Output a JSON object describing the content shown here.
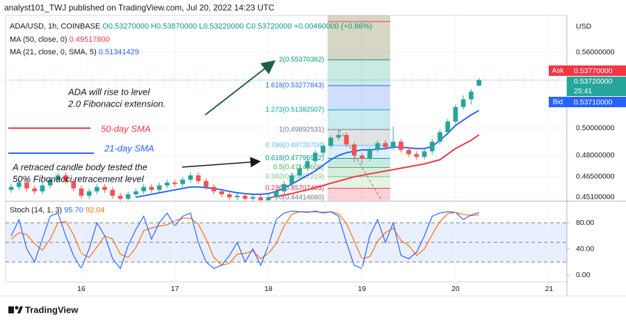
{
  "header": {
    "publisher": "analyst101_TWJ published on TradingView.com, Jul 20, 2022 14:23 UTC",
    "logo": "TradingView"
  },
  "chart_data": [
    {
      "type": "candlestick",
      "symbol": "ADA/USD, 1h, COINBASE",
      "ohlc": [
        "O0.53270000",
        "H0.53870000",
        "L0.53220000",
        "C0.53720000"
      ],
      "change": "+0.00460000 (+0.86%)",
      "currency": "USD",
      "log": true,
      "grid": true,
      "up_color": "#26a69a",
      "down_color": "#ef5350",
      "x": [
        15.25,
        15.3333,
        15.4167,
        15.5,
        15.5833,
        15.6667,
        15.75,
        15.8333,
        15.9167,
        16,
        16.0833,
        16.1667,
        16.25,
        16.3333,
        16.4167,
        16.5,
        16.5833,
        16.6667,
        16.75,
        16.8333,
        16.9167,
        17,
        17.0833,
        17.1667,
        17.25,
        17.3333,
        17.4167,
        17.5,
        17.5833,
        17.6667,
        17.75,
        17.8333,
        17.9167,
        18,
        18.0833,
        18.1667,
        18.25,
        18.3333,
        18.4167,
        18.5,
        18.5833,
        18.6667,
        18.75,
        18.8333,
        18.9167,
        19,
        19.0833,
        19.1667,
        19.25,
        19.3333,
        19.4167,
        19.5,
        19.5833,
        19.6667,
        19.75,
        19.8333,
        19.9167,
        20,
        20.0833,
        20.1667,
        20.25
      ],
      "open": [
        0.456,
        0.458,
        0.461,
        0.457,
        0.455,
        0.459,
        0.463,
        0.466,
        0.462,
        0.457,
        0.452,
        0.455,
        0.458,
        0.456,
        0.452,
        0.45,
        0.453,
        0.455,
        0.458,
        0.456,
        0.459,
        0.461,
        0.46,
        0.463,
        0.466,
        0.462,
        0.458,
        0.455,
        0.453,
        0.451,
        0.452,
        0.45,
        0.451,
        0.449,
        0.451,
        0.455,
        0.46,
        0.466,
        0.471,
        0.476,
        0.482,
        0.487,
        0.493,
        0.495,
        0.488,
        0.48,
        0.478,
        0.484,
        0.489,
        0.486,
        0.49,
        0.484,
        0.481,
        0.479,
        0.483,
        0.49,
        0.497,
        0.505,
        0.516,
        0.522,
        0.5327
      ],
      "high": [
        0.46,
        0.463,
        0.463,
        0.459,
        0.461,
        0.465,
        0.468,
        0.468,
        0.464,
        0.459,
        0.457,
        0.46,
        0.46,
        0.458,
        0.454,
        0.455,
        0.457,
        0.46,
        0.46,
        0.461,
        0.463,
        0.463,
        0.465,
        0.468,
        0.468,
        0.464,
        0.46,
        0.457,
        0.455,
        0.454,
        0.454,
        0.453,
        0.453,
        0.453,
        0.457,
        0.462,
        0.468,
        0.473,
        0.478,
        0.484,
        0.489,
        0.495,
        0.499,
        0.497,
        0.49,
        0.482,
        0.486,
        0.491,
        0.491,
        0.501,
        0.492,
        0.486,
        0.483,
        0.485,
        0.492,
        0.499,
        0.507,
        0.518,
        0.525,
        0.53,
        0.5387
      ],
      "low": [
        0.454,
        0.456,
        0.455,
        0.453,
        0.453,
        0.457,
        0.461,
        0.46,
        0.455,
        0.45,
        0.45,
        0.453,
        0.454,
        0.45,
        0.448,
        0.448,
        0.451,
        0.453,
        0.454,
        0.454,
        0.457,
        0.458,
        0.458,
        0.461,
        0.46,
        0.456,
        0.453,
        0.451,
        0.449,
        0.449,
        0.448,
        0.448,
        0.447,
        0.447,
        0.449,
        0.453,
        0.458,
        0.464,
        0.469,
        0.474,
        0.48,
        0.485,
        0.491,
        0.486,
        0.475,
        0.474,
        0.476,
        0.482,
        0.484,
        0.484,
        0.482,
        0.479,
        0.477,
        0.477,
        0.481,
        0.488,
        0.495,
        0.503,
        0.514,
        0.518,
        0.5322
      ],
      "close": [
        0.458,
        0.461,
        0.457,
        0.455,
        0.459,
        0.463,
        0.466,
        0.462,
        0.457,
        0.452,
        0.455,
        0.458,
        0.456,
        0.452,
        0.45,
        0.453,
        0.455,
        0.458,
        0.456,
        0.459,
        0.461,
        0.46,
        0.463,
        0.466,
        0.462,
        0.458,
        0.455,
        0.453,
        0.451,
        0.452,
        0.45,
        0.451,
        0.449,
        0.451,
        0.455,
        0.46,
        0.466,
        0.471,
        0.476,
        0.482,
        0.487,
        0.493,
        0.495,
        0.488,
        0.48,
        0.478,
        0.484,
        0.489,
        0.486,
        0.49,
        0.484,
        0.481,
        0.479,
        0.483,
        0.49,
        0.497,
        0.505,
        0.516,
        0.522,
        0.528,
        0.5372
      ],
      "series": [
        {
          "name": "MA (50, close, 0)",
          "value_label": "0.49517800",
          "color": "#f23645",
          "values": [
            null,
            null,
            null,
            null,
            null,
            null,
            null,
            null,
            null,
            null,
            null,
            null,
            null,
            null,
            null,
            null,
            null,
            null,
            null,
            null,
            null,
            null,
            null,
            null,
            null,
            null,
            null,
            null,
            null,
            null,
            null,
            null,
            null,
            0.4505,
            0.4515,
            0.4525,
            0.4535,
            0.4548,
            0.456,
            0.4575,
            0.459,
            0.4605,
            0.462,
            0.4635,
            0.465,
            0.466,
            0.467,
            0.468,
            0.469,
            0.47,
            0.471,
            0.472,
            0.473,
            0.474,
            0.4755,
            0.477,
            0.481,
            0.485,
            0.488,
            0.491,
            0.495178
          ]
        },
        {
          "name": "MA (21, close, 0, SMA, 5)",
          "value_label": "0.51341429",
          "color": "#2962ff",
          "values": [
            null,
            null,
            null,
            null,
            null,
            null,
            null,
            null,
            null,
            null,
            null,
            null,
            null,
            null,
            null,
            null,
            0.451,
            0.452,
            0.453,
            0.454,
            0.455,
            0.456,
            0.457,
            0.458,
            0.458,
            0.4575,
            0.457,
            0.456,
            0.455,
            0.454,
            0.4535,
            0.453,
            0.453,
            0.4535,
            0.455,
            0.457,
            0.46,
            0.463,
            0.466,
            0.469,
            0.473,
            0.477,
            0.48,
            0.482,
            0.483,
            0.484,
            0.484,
            0.4845,
            0.485,
            0.486,
            0.486,
            0.4855,
            0.485,
            0.485,
            0.4865,
            0.491,
            0.496,
            0.502,
            0.506,
            0.51,
            0.5134143
          ]
        }
      ],
      "xlim": [
        15.19,
        21.19
      ],
      "xticks": [
        16,
        17,
        18,
        19,
        20,
        21
      ],
      "ylim": [
        0.4488,
        0.5917
      ],
      "yticks": [
        {
          "value": 0.56,
          "label": "0.56000000"
        },
        {
          "value": 0.5,
          "label": "0.50000000"
        },
        {
          "value": 0.48,
          "label": "0.48000000"
        },
        {
          "value": 0.465,
          "label": "0.46500000"
        },
        {
          "value": 0.451,
          "label": "0.45100000"
        }
      ],
      "quote": {
        "ask_label": "Ask",
        "ask": "0.53770000",
        "last": "0.53720000",
        "countdown": "25:41",
        "bid_label": "Bid",
        "bid": "0.53710000"
      },
      "fib": {
        "levels": [
          {
            "label": "2(0.55370382)",
            "value": 0.55370382,
            "color": "#089981"
          },
          {
            "label": "1.618(0.53277843)",
            "value": 0.53277843,
            "color": "#2962ff"
          },
          {
            "label": "1.272(0.51382507)",
            "value": 0.51382507,
            "color": "#00a5b5"
          },
          {
            "label": "1(0.49892531)",
            "value": 0.49892531,
            "color": "#787b86"
          },
          {
            "label": "0.786(0.48720704)",
            "value": 0.48720704,
            "color": "#64b5f6"
          },
          {
            "label": "0.618(0.47795992)",
            "value": 0.47795992,
            "color": "#089981"
          },
          {
            "label": "0.5(0.47148606)",
            "value": 0.47148606,
            "color": "#4caf50"
          },
          {
            "label": "0.382(0.46507219)",
            "value": 0.46507219,
            "color": "#81c784"
          },
          {
            "label": "0.236(0.45707483)",
            "value": 0.45707483,
            "color": "#f23645"
          },
          {
            "label": "0(0.44414680)",
            "value": 0.4441468,
            "color": "#787b86"
          }
        ]
      },
      "annotations": {
        "extension": [
          "ADA will rise to level",
          "2.0 Fibonacci extension."
        ],
        "sma50": "50-day SMA",
        "sma21": "21-day SMA",
        "retrace": [
          "A retraced candle body tested the",
          "50% Fibonacci retracement level"
        ]
      }
    },
    {
      "type": "line",
      "title": "Stoch (14, 1, 3)",
      "legend_values": [
        "95.70",
        "92.04"
      ],
      "series": [
        {
          "name": "%K",
          "color": "#2962ff",
          "values": [
            60,
            85,
            40,
            20,
            55,
            90,
            95,
            60,
            30,
            10,
            40,
            80,
            60,
            25,
            10,
            45,
            70,
            90,
            55,
            80,
            95,
            75,
            90,
            95,
            50,
            20,
            10,
            15,
            30,
            50,
            20,
            40,
            15,
            45,
            85,
            95,
            98,
            97,
            96,
            98,
            95,
            97,
            90,
            50,
            15,
            10,
            60,
            85,
            50,
            80,
            30,
            25,
            35,
            60,
            90,
            95,
            97,
            96,
            85,
            92,
            95.7
          ]
        },
        {
          "name": "%D",
          "color": "#ff6d00",
          "values": [
            55,
            65,
            62,
            48,
            38,
            55,
            80,
            82,
            62,
            33,
            27,
            43,
            60,
            55,
            32,
            27,
            42,
            68,
            72,
            75,
            77,
            83,
            87,
            87,
            78,
            55,
            27,
            15,
            18,
            32,
            33,
            37,
            25,
            33,
            48,
            75,
            93,
            97,
            97,
            97,
            96,
            97,
            94,
            79,
            52,
            25,
            28,
            52,
            65,
            72,
            53,
            45,
            30,
            40,
            62,
            82,
            94,
            96,
            93,
            91,
            92.04
          ]
        }
      ],
      "levels": [
        20,
        50,
        80
      ],
      "ylim": [
        -10.7,
        112
      ],
      "yticks": [
        {
          "value": 80,
          "label": "80.00"
        },
        {
          "value": 40,
          "label": "40.00"
        },
        {
          "value": 0,
          "label": "0.00"
        }
      ]
    }
  ]
}
